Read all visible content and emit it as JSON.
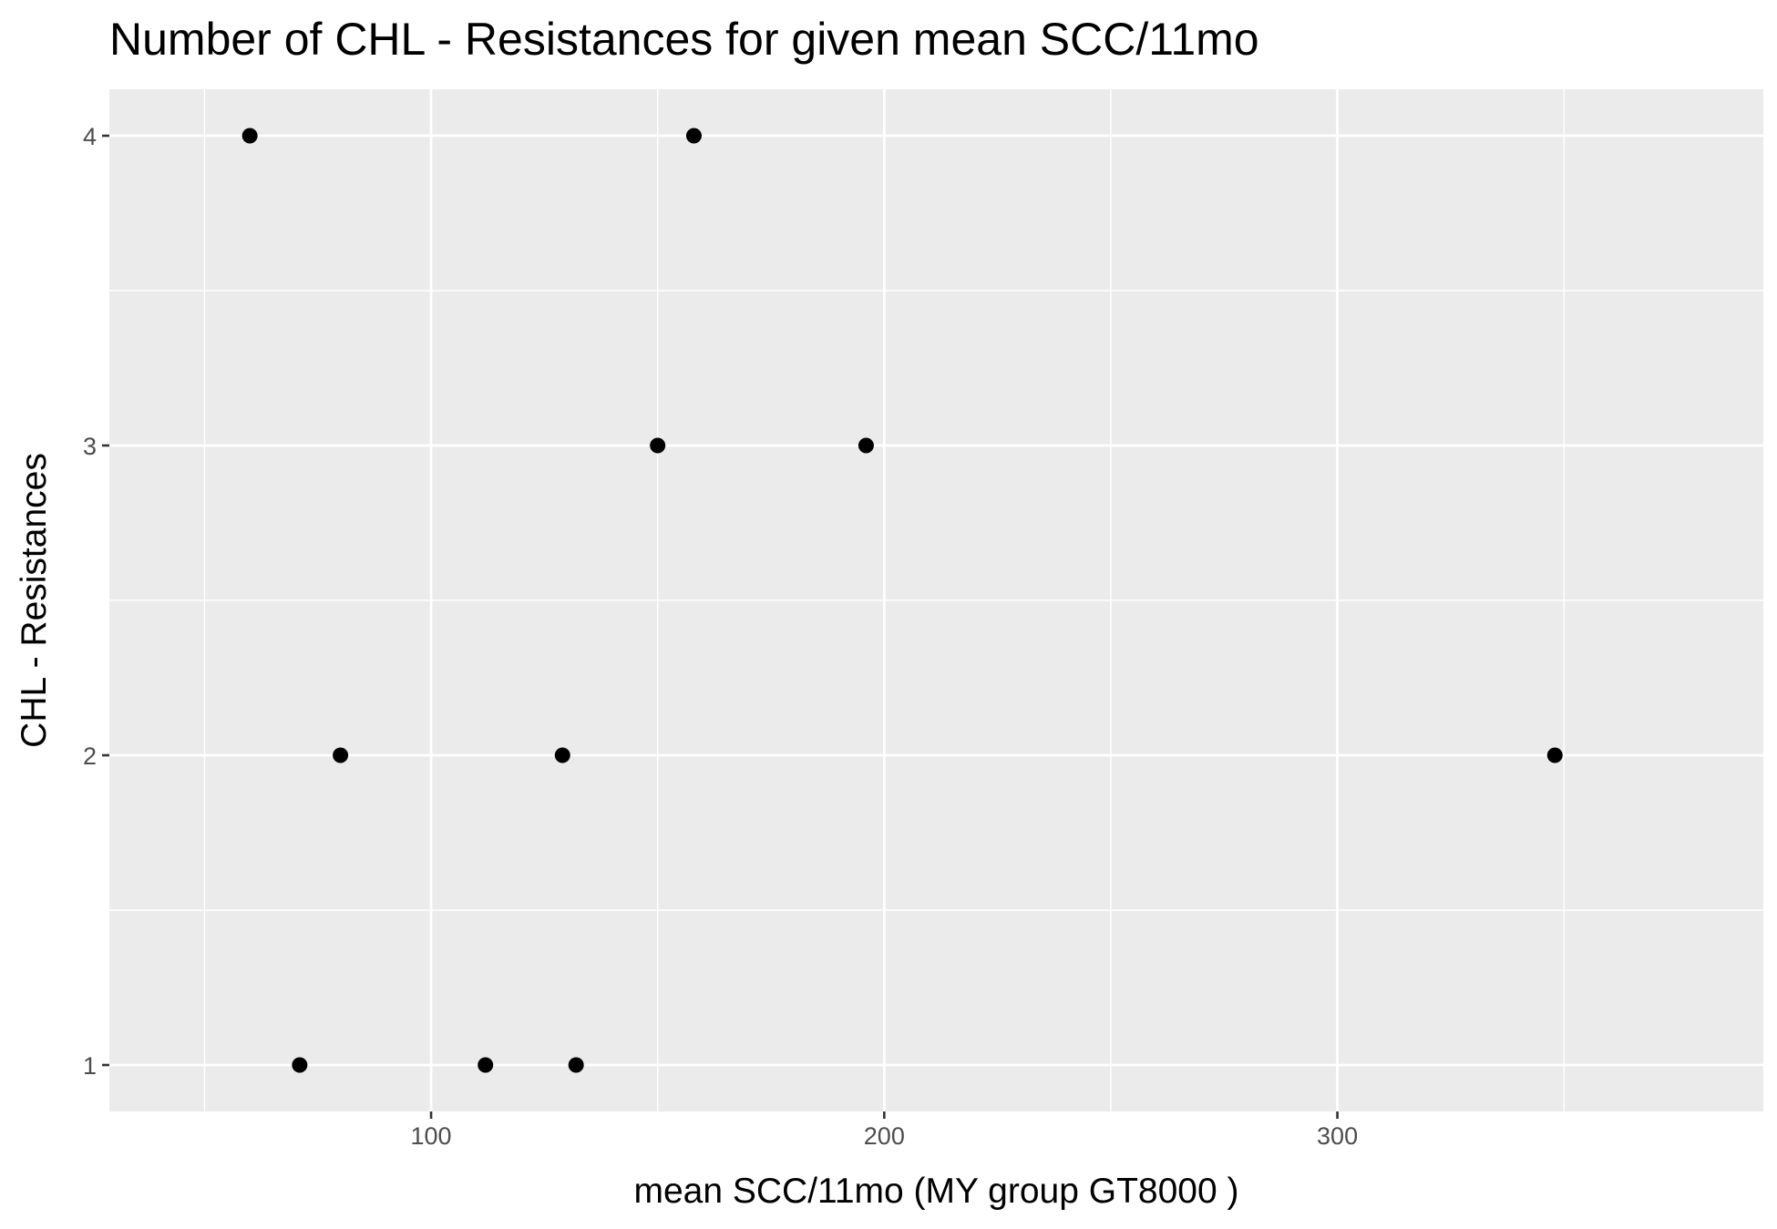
{
  "chart_data": {
    "type": "scatter",
    "title": "Number of CHL - Resistances for given mean SCC/11mo",
    "xlabel": "mean SCC/11mo     (MY group GT8000 )",
    "ylabel": "CHL - Resistances",
    "xlim": [
      29,
      394
    ],
    "ylim": [
      0.85,
      4.15
    ],
    "x_ticks": [
      100,
      200,
      300
    ],
    "x_minor_ticks": [
      50,
      150,
      250,
      350
    ],
    "y_ticks": [
      1,
      2,
      3,
      4
    ],
    "y_minor_ticks": [
      1.5,
      2.5,
      3.5
    ],
    "grid": true,
    "panel_background": "#ebebeb",
    "grid_color": "#ffffff",
    "point_color": "#000000",
    "points": [
      {
        "x": 60,
        "y": 4
      },
      {
        "x": 158,
        "y": 4
      },
      {
        "x": 150,
        "y": 3
      },
      {
        "x": 196,
        "y": 3
      },
      {
        "x": 80,
        "y": 2
      },
      {
        "x": 129,
        "y": 2
      },
      {
        "x": 348,
        "y": 2
      },
      {
        "x": 71,
        "y": 1
      },
      {
        "x": 112,
        "y": 1
      },
      {
        "x": 132,
        "y": 1
      }
    ]
  }
}
